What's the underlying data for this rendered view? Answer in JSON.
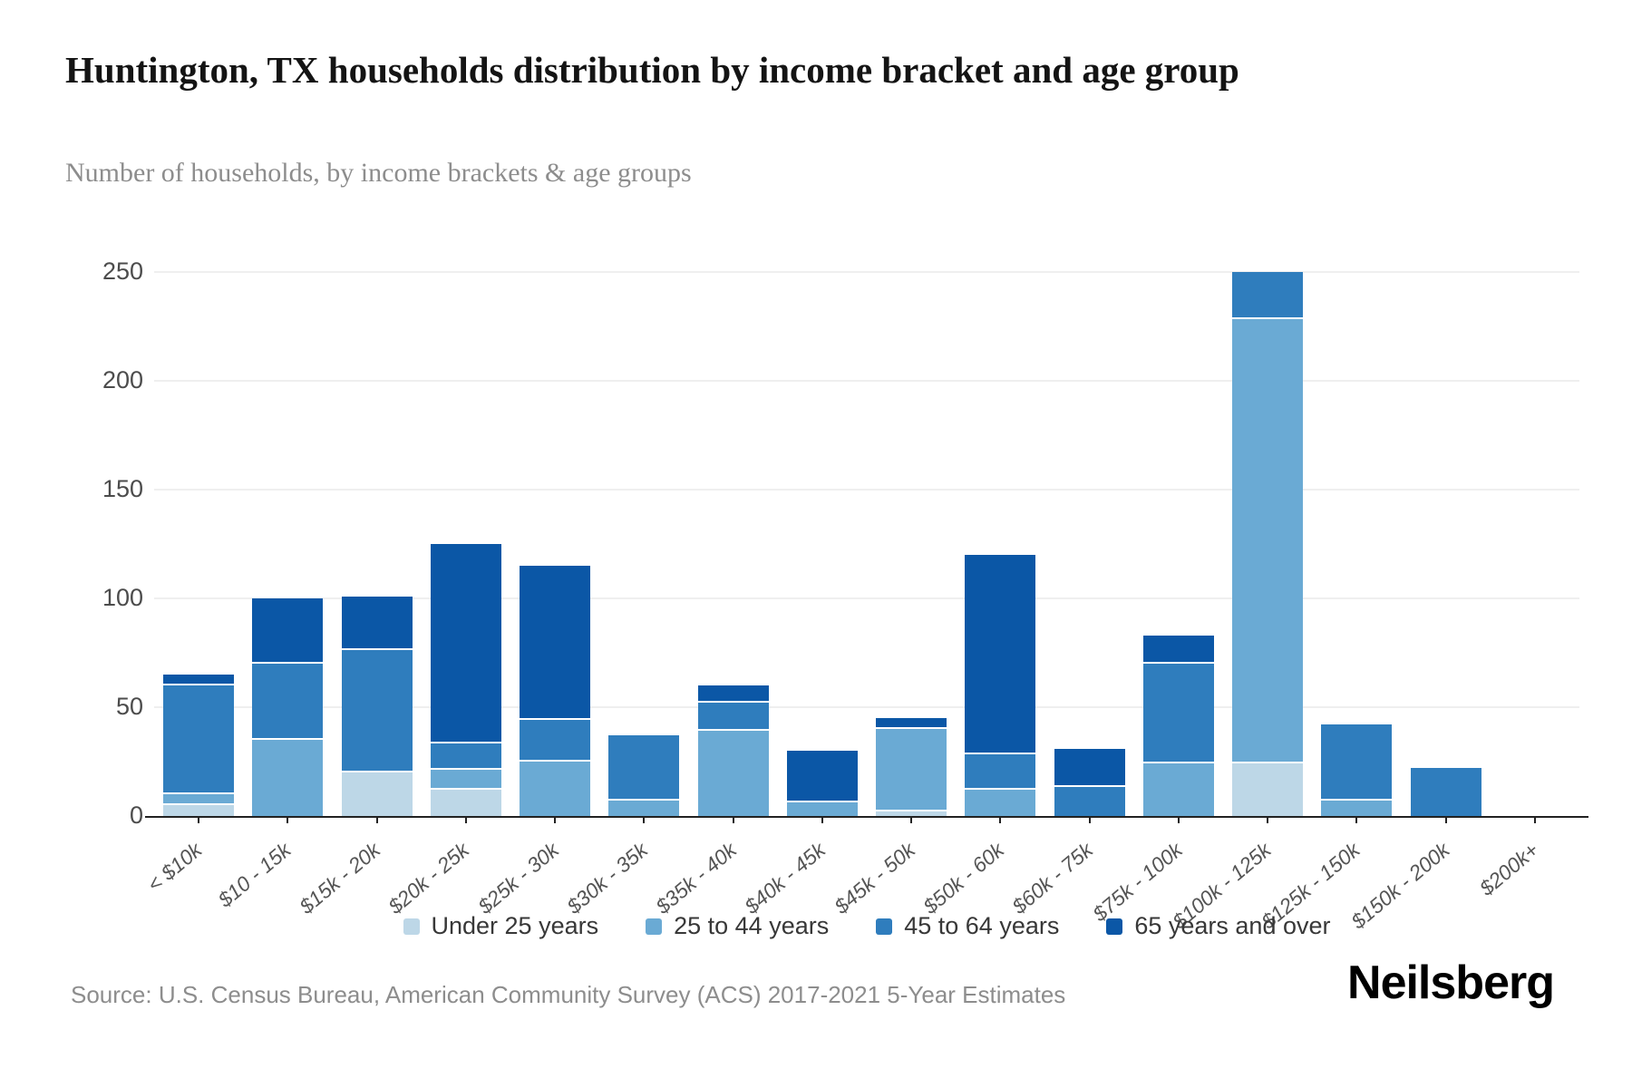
{
  "page": {
    "title": "Huntington, TX households distribution by income bracket and age group",
    "subtitle": "Number of households, by income brackets & age groups",
    "source": "Source: U.S. Census Bureau, American Community Survey (ACS) 2017-2021 5-Year Estimates",
    "logo": "Neilsberg"
  },
  "chart_data": {
    "type": "bar",
    "stacked": true,
    "title": "Huntington, TX households distribution by income bracket and age group",
    "subtitle": "Number of households, by income brackets & age groups",
    "xlabel": "",
    "ylabel": "",
    "categories": [
      "< $10k",
      "$10 - 15k",
      "$15k - 20k",
      "$20k - 25k",
      "$25k - 30k",
      "$30k - 35k",
      "$35k - 40k",
      "$40k - 45k",
      "$45k - 50k",
      "$50k - 60k",
      "$60k - 75k",
      "$75k - 100k",
      "$100k - 125k",
      "$125k - 150k",
      "$150k - 200k",
      "$200k+"
    ],
    "series": [
      {
        "name": "Under 25 years",
        "color": "#bdd7e7",
        "values": [
          6,
          0,
          21,
          13,
          0,
          0,
          0,
          0,
          3,
          0,
          0,
          0,
          25,
          0,
          0,
          0
        ]
      },
      {
        "name": "25 to 44 years",
        "color": "#6aaad4",
        "values": [
          5,
          36,
          0,
          9,
          26,
          8,
          40,
          7,
          38,
          13,
          0,
          25,
          204,
          8,
          0,
          0
        ]
      },
      {
        "name": "45 to 64 years",
        "color": "#2f7dbd",
        "values": [
          50,
          35,
          56,
          12,
          19,
          29,
          13,
          0,
          0,
          16,
          14,
          46,
          21,
          34,
          22,
          0
        ]
      },
      {
        "name": "65 years and over",
        "color": "#0b57a6",
        "values": [
          4,
          29,
          24,
          91,
          70,
          0,
          7,
          23,
          4,
          91,
          17,
          12,
          0,
          0,
          0,
          0
        ]
      }
    ],
    "totals": [
      65,
      100,
      101,
      125,
      115,
      37,
      60,
      30,
      45,
      120,
      31,
      83,
      250,
      42,
      22,
      0
    ],
    "y_ticks": [
      0,
      50,
      100,
      150,
      200,
      250
    ],
    "ylim": [
      0,
      250
    ],
    "grid": "horizontal",
    "legend_position": "bottom"
  }
}
